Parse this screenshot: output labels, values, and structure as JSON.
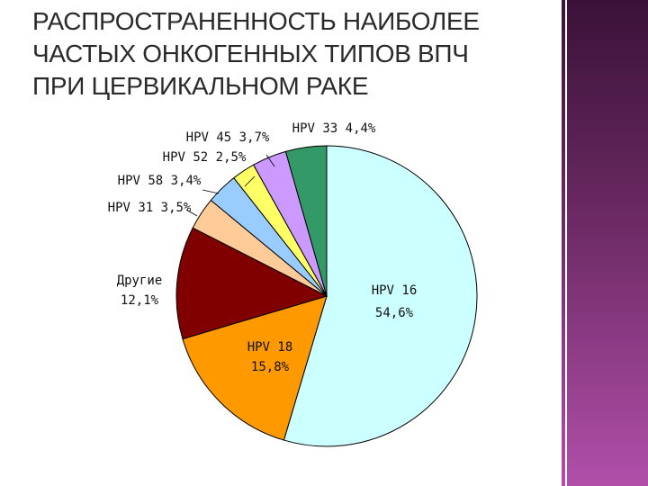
{
  "slide": {
    "title_lines": [
      "РАСПРОСТРАНЕННОСТЬ НАИБОЛЕЕ",
      "ЧАСТЫХ ОНКОГЕННЫХ ТИПОВ  ВПЧ",
      "ПРИ ЦЕРВИКАЛЬНОМ РАКЕ"
    ]
  },
  "chart_data": {
    "type": "pie",
    "start_angle_deg": 0,
    "direction": "clockwise",
    "slices": [
      {
        "name": "HPV 16",
        "value_label": "54,6%",
        "value": 54.6,
        "color": "#ccffff",
        "label_lines": [
          "HPV 16",
          "54,6%"
        ]
      },
      {
        "name": "HPV 18",
        "value_label": "15,8%",
        "value": 15.8,
        "color": "#ff9900",
        "label_lines": [
          "HPV 18",
          "15,8%"
        ]
      },
      {
        "name": "Другие",
        "value_label": "12,1%",
        "value": 12.1,
        "color": "#800000",
        "label_lines": [
          "Другие",
          "12,1%"
        ]
      },
      {
        "name": "HPV 31",
        "value_label": "3,5%",
        "value": 3.5,
        "color": "#ffcc99",
        "label_lines": [
          "HPV 31 3,5%"
        ]
      },
      {
        "name": "HPV 58",
        "value_label": "3,4%",
        "value": 3.4,
        "color": "#99ccff",
        "label_lines": [
          "HPV 58 3,4%"
        ]
      },
      {
        "name": "HPV 52",
        "value_label": "2,5%",
        "value": 2.5,
        "color": "#ffff66",
        "label_lines": [
          "HPV 52 2,5%"
        ]
      },
      {
        "name": "HPV 45",
        "value_label": "3,7%",
        "value": 3.7,
        "color": "#cc99ff",
        "label_lines": [
          "HPV 45 3,7%"
        ]
      },
      {
        "name": "HPV 33",
        "value_label": "4,4%",
        "value": 4.4,
        "color": "#339966",
        "label_lines": [
          "HPV 33 4,4%"
        ]
      }
    ]
  }
}
